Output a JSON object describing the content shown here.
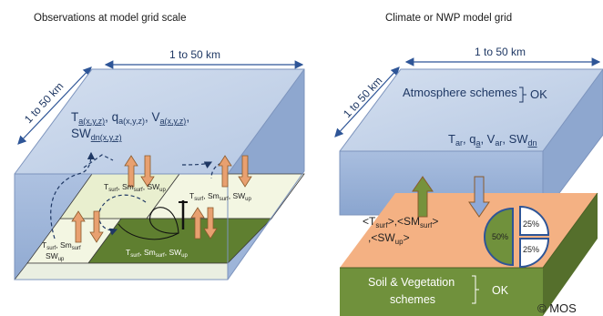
{
  "left": {
    "title": "Observations at model grid scale",
    "width_label": "1 to 50 km",
    "depth_label": "1 to 50 km",
    "atmos_line1": "T",
    "atmos_line1_sub": "a(x,y,z)",
    "atmos_q": ", q",
    "atmos_q_sub": "a(x,y,z)",
    "atmos_v": ", V",
    "atmos_v_sub": "a(x,y,z)",
    "atmos_comma": ",",
    "atmos_sw": "SW",
    "atmos_sw_sub": "dn(x,y,z)",
    "tile1_label": "T",
    "tile1_label_sub": "surf",
    "tile1_sm": ", Sm",
    "tile1_sm_sub": "surf",
    "tile1_sw": ", SW",
    "tile1_sw_sub": "up",
    "tile2_label": "T",
    "tile2_label_sub": "surf",
    "tile2_sm": ", Sm",
    "tile2_sm_sub": "surf",
    "tile2_sw": ", SW",
    "tile2_sw_sub": "up",
    "tile3_t": "T",
    "tile3_t_sub": "surf",
    "tile3_sm": ", Sm",
    "tile3_sm_sub": "surf",
    "tile3_sw": "SW",
    "tile3_sw_sub": "up",
    "tile4_label": "T",
    "tile4_label_sub": "surf",
    "tile4_sm": ", Sm",
    "tile4_sm_sub": "surf",
    "tile4_sw": ", SW",
    "tile4_sw_sub": "up"
  },
  "right": {
    "title": "Climate or NWP model grid",
    "width_label": "1 to 50 km",
    "depth_label": "1 to 50 km",
    "atmos_schemes": "Atmosphere schemes",
    "atmos_ok": "OK",
    "vars_t": "T",
    "vars_t_sub": "ar",
    "vars_q": ", q",
    "vars_q_sub": "a",
    "vars_v": ", V",
    "vars_v_sub": "ar",
    "vars_sw": ", SW",
    "vars_sw_sub": "dn",
    "surf_t": "<T",
    "surf_t_sub": "surf",
    "surf_t_end": ">,",
    "surf_sm": "<SM",
    "surf_sm_sub": "surf",
    "surf_sm_end": ">",
    "surf_sw": ",<SW",
    "surf_sw_sub": "up",
    "surf_sw_end": ">",
    "pie": {
      "slices": [
        {
          "label": "50%",
          "value": 50
        },
        {
          "label": "25%",
          "value": 25
        },
        {
          "label": "25%",
          "value": 25
        }
      ]
    },
    "soil_line1": "Soil & Vegetation",
    "soil_line2": "schemes",
    "soil_ok": "OK"
  },
  "copyright": "© MOS",
  "colors": {
    "atmosphere": "#9db3d6",
    "atmosphere_top": "#c9d6ea",
    "atmosphere_side": "#7f98c2",
    "surface_orange": "#f4b183",
    "soil_green": "#70913c",
    "soil_green_dark": "#556f2c",
    "tile_light": "#eef3d8",
    "tile_green": "#5f7f30",
    "arrow_orange": "#e8a070",
    "arrow_green": "#76923c",
    "arrow_blue": "#8ea9d8",
    "arrow_border": "#8b5a2b"
  }
}
